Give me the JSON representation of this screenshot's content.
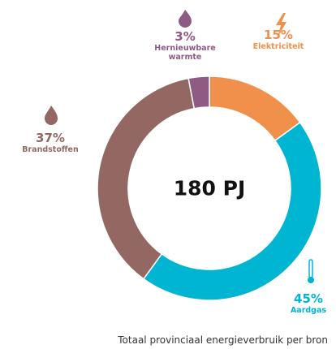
{
  "chart_data": {
    "type": "donut",
    "center_label": "180 PJ",
    "caption": "Totaal provinciaal energieverbruik per bron",
    "categories": [
      "Elektriciteit",
      "Aardgas",
      "Brandstoffen",
      "Hernieuwbare warmte"
    ],
    "values": [
      15,
      45,
      37,
      3
    ],
    "value_labels": [
      "15%",
      "45%",
      "37%",
      "3%"
    ],
    "colors": [
      "#f0904a",
      "#00b5d1",
      "#936862",
      "#8f5a84"
    ]
  }
}
